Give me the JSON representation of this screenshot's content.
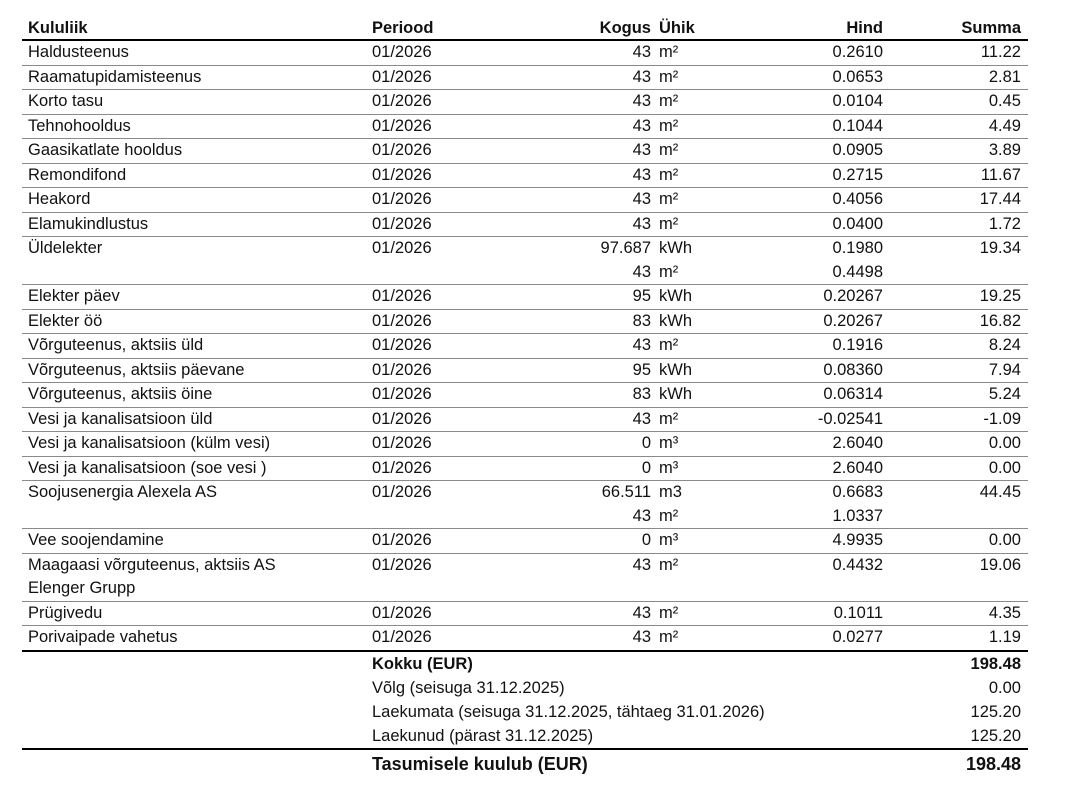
{
  "headers": {
    "name": "Kululiik",
    "period": "Periood",
    "qty": "Kogus",
    "unit": "Ühik",
    "price": "Hind",
    "sum": "Summa"
  },
  "items": [
    {
      "name": "Haldusteenus",
      "period": "01/2026",
      "qty": "43",
      "unit": "m²",
      "price": "0.2610",
      "sum": "11.22"
    },
    {
      "name": "Raamatupidamisteenus",
      "period": "01/2026",
      "qty": "43",
      "unit": "m²",
      "price": "0.0653",
      "sum": "2.81"
    },
    {
      "name": "Korto tasu",
      "period": "01/2026",
      "qty": "43",
      "unit": "m²",
      "price": "0.0104",
      "sum": "0.45"
    },
    {
      "name": "Tehnohooldus",
      "period": "01/2026",
      "qty": "43",
      "unit": "m²",
      "price": "0.1044",
      "sum": "4.49"
    },
    {
      "name": "Gaasikatlate hooldus",
      "period": "01/2026",
      "qty": "43",
      "unit": "m²",
      "price": "0.0905",
      "sum": "3.89"
    },
    {
      "name": "Remondifond",
      "period": "01/2026",
      "qty": "43",
      "unit": "m²",
      "price": "0.2715",
      "sum": "11.67"
    },
    {
      "name": "Heakord",
      "period": "01/2026",
      "qty": "43",
      "unit": "m²",
      "price": "0.4056",
      "sum": "17.44"
    },
    {
      "name": "Elamukindlustus",
      "period": "01/2026",
      "qty": "43",
      "unit": "m²",
      "price": "0.0400",
      "sum": "1.72"
    },
    {
      "name": "Üldelekter",
      "period": "01/2026",
      "qty": "97.687",
      "unit": "kWh",
      "price": "0.1980",
      "sum": "19.34",
      "extra": {
        "qty": "43",
        "unit": "m²",
        "price": "0.4498"
      }
    },
    {
      "name": "Elekter päev",
      "period": "01/2026",
      "qty": "95",
      "unit": "kWh",
      "price": "0.20267",
      "sum": "19.25"
    },
    {
      "name": "Elekter öö",
      "period": "01/2026",
      "qty": "83",
      "unit": "kWh",
      "price": "0.20267",
      "sum": "16.82"
    },
    {
      "name": "Võrguteenus, aktsiis üld",
      "period": "01/2026",
      "qty": "43",
      "unit": "m²",
      "price": "0.1916",
      "sum": "8.24"
    },
    {
      "name": "Võrguteenus, aktsiis päevane",
      "period": "01/2026",
      "qty": "95",
      "unit": "kWh",
      "price": "0.08360",
      "sum": "7.94"
    },
    {
      "name": "Võrguteenus, aktsiis öine",
      "period": "01/2026",
      "qty": "83",
      "unit": "kWh",
      "price": "0.06314",
      "sum": "5.24"
    },
    {
      "name": "Vesi ja kanalisatsioon üld",
      "period": "01/2026",
      "qty": "43",
      "unit": "m²",
      "price": "-0.02541",
      "sum": "-1.09"
    },
    {
      "name": "Vesi ja kanalisatsioon (külm vesi)",
      "period": "01/2026",
      "qty": "0",
      "unit": "m³",
      "price": "2.6040",
      "sum": "0.00"
    },
    {
      "name": "Vesi ja kanalisatsioon (soe vesi )",
      "period": "01/2026",
      "qty": "0",
      "unit": "m³",
      "price": "2.6040",
      "sum": "0.00"
    },
    {
      "name": "Soojusenergia Alexela AS",
      "period": "01/2026",
      "qty": "66.511",
      "unit": "m3",
      "price": "0.6683",
      "sum": "44.45",
      "extra": {
        "qty": "43",
        "unit": "m²",
        "price": "1.0337"
      }
    },
    {
      "name": "Vee soojendamine",
      "period": "01/2026",
      "qty": "0",
      "unit": "m³",
      "price": "4.9935",
      "sum": "0.00"
    },
    {
      "name": "Maagaasi võrguteenus, aktsiis AS",
      "name2": "Elenger Grupp",
      "period": "01/2026",
      "qty": "43",
      "unit": "m²",
      "price": "0.4432",
      "sum": "19.06"
    },
    {
      "name": "Prügivedu",
      "period": "01/2026",
      "qty": "43",
      "unit": "m²",
      "price": "0.1011",
      "sum": "4.35"
    },
    {
      "name": "Porivaipade vahetus",
      "period": "01/2026",
      "qty": "43",
      "unit": "m²",
      "price": "0.0277",
      "sum": "1.19"
    }
  ],
  "totals": {
    "total_label": "Kokku (EUR)",
    "total_value": "198.48",
    "debt_label": "Võlg (seisuga 31.12.2025)",
    "debt_value": "0.00",
    "unpaid_label": "Laekumata (seisuga 31.12.2025, tähtaeg 31.01.2026)",
    "unpaid_value": "125.20",
    "received_label": "Laekunud (pärast 31.12.2025)",
    "received_value": "125.20",
    "due_label": "Tasumisele kuulub (EUR)",
    "due_value": "198.48"
  }
}
